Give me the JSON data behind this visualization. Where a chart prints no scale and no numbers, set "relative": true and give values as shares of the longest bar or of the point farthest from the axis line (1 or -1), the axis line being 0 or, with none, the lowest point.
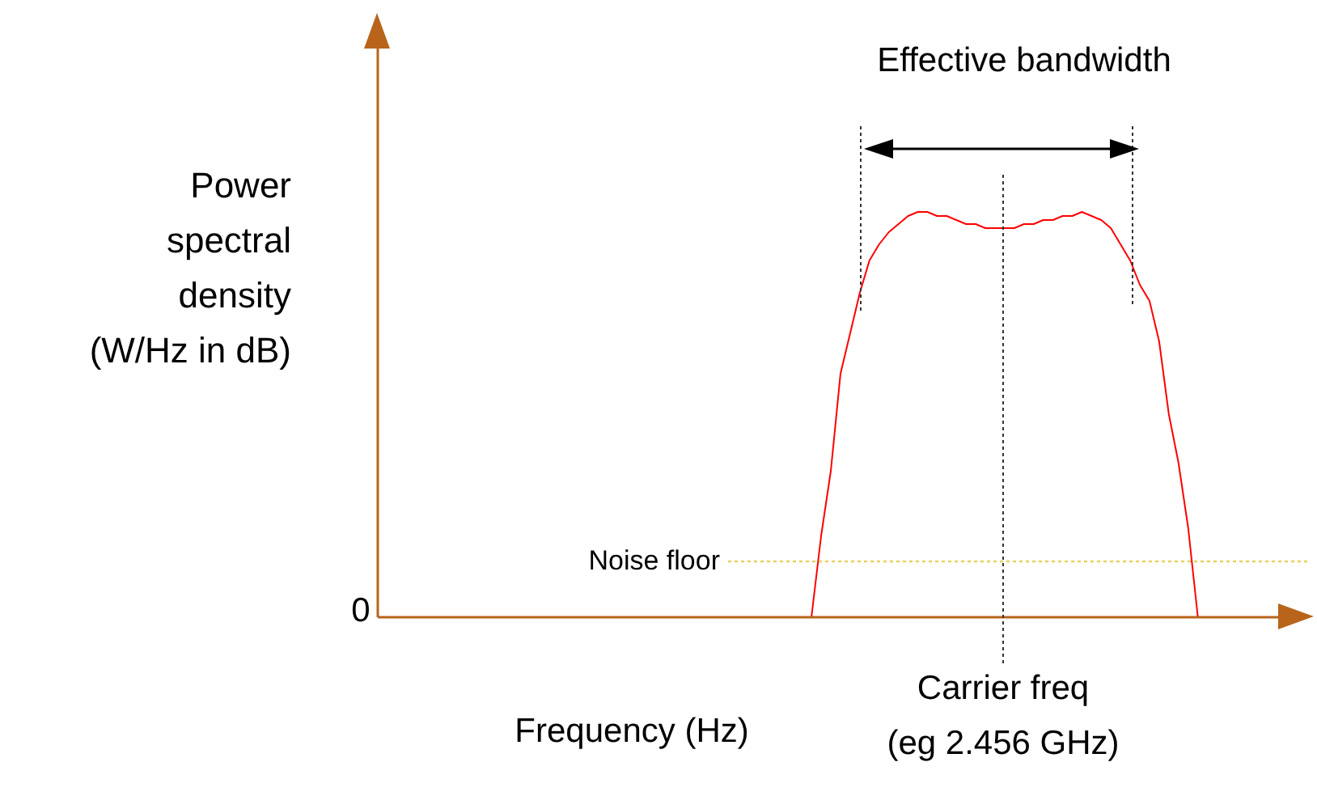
{
  "chart_data": {
    "type": "line",
    "xlabel": "Frequency (Hz)",
    "ylabel": "Power spectral density (W/Hz in dB)",
    "relative": true,
    "annotations": [
      "Effective bandwidth",
      "Carrier freq (eg 2.456 GHz)",
      "0"
    ],
    "categories": [
      null,
      null,
      null,
      null,
      null,
      null,
      null,
      null,
      null,
      null,
      null,
      null,
      null,
      null,
      null,
      null,
      null,
      null,
      null,
      null,
      null,
      null,
      null,
      null,
      null,
      null,
      null,
      null,
      null,
      null,
      null,
      null,
      null,
      null,
      null,
      null,
      null,
      null,
      null,
      null,
      null,
      null,
      null,
      null,
      null,
      null,
      null,
      null,
      null,
      null,
      null,
      null,
      null,
      null,
      null,
      null,
      null,
      null,
      null,
      null,
      null,
      null,
      null,
      null,
      null,
      null,
      null,
      null,
      null,
      null,
      null,
      null,
      null,
      null,
      null,
      null,
      null,
      null,
      null,
      null,
      null,
      null,
      null,
      null,
      null,
      null,
      null,
      null,
      null,
      null,
      null,
      null,
      null,
      null,
      null,
      null
    ],
    "series": [
      {
        "color": "#ff0000",
        "values": [
          null,
          null,
          null,
          null,
          null,
          null,
          null,
          null,
          null,
          null,
          null,
          null,
          null,
          null,
          null,
          null,
          null,
          null,
          null,
          null,
          null,
          null,
          null,
          null,
          null,
          null,
          null,
          null,
          null,
          null,
          null,
          null,
          null,
          null,
          null,
          null,
          null,
          null,
          null,
          null,
          null,
          null,
          null,
          null,
          null,
          0,
          0.2,
          0.36,
          0.6,
          0.7,
          0.8,
          0.88,
          0.92,
          0.95,
          0.97,
          0.99,
          1,
          1,
          0.99,
          0.99,
          0.98,
          0.97,
          0.97,
          0.96,
          0.96,
          0.96,
          0.96,
          0.97,
          0.97,
          0.98,
          0.98,
          0.99,
          0.99,
          1,
          0.99,
          0.98,
          0.96,
          0.92,
          0.88,
          0.82,
          0.78,
          0.68,
          0.5,
          0.38,
          0.22,
          0,
          null,
          null,
          null,
          null,
          null,
          null,
          null,
          null,
          null,
          null
        ]
      }
    ],
    "ref_lines": [
      {
        "axis": "y",
        "value": 0.136,
        "label": "Noise floor",
        "color": "#e8d060",
        "line_style": "dotted"
      }
    ]
  }
}
